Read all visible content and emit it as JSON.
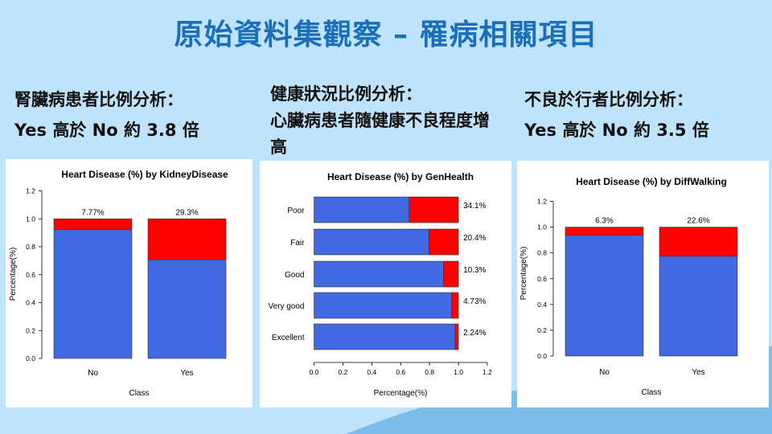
{
  "slide": {
    "title": "原始資料集觀察 – 罹病相關項目",
    "captions": [
      {
        "line1": "腎臟病患者比例分析：",
        "line2": "Yes 高於 No 約 3.8 倍"
      },
      {
        "line1": "健康狀況比例分析：",
        "line2": "心臟病患者隨健康不良程度增高"
      },
      {
        "line1": "不良於行者比例分析：",
        "line2": "Yes 高於 No 約 3.5 倍"
      }
    ]
  },
  "colors": {
    "no_disease": "#4169e1",
    "disease": "#ff0000",
    "accent": "#1a6fb8"
  },
  "chart_data": [
    {
      "type": "bar",
      "orientation": "vertical",
      "stacked": true,
      "title": "Heart Disease (%) by KidneyDisease",
      "xlabel": "Class",
      "ylabel": "Percentage(%)",
      "categories": [
        "No",
        "Yes"
      ],
      "disease_share": [
        0.0777,
        0.293
      ],
      "labels": [
        "7.77%",
        "29.3%"
      ],
      "ylim": [
        0,
        1.2
      ],
      "ticks": [
        "0.0",
        "0.2",
        "0.4",
        "0.6",
        "0.8",
        "1.0",
        "1.2"
      ]
    },
    {
      "type": "bar",
      "orientation": "horizontal",
      "stacked": true,
      "title": "Heart Disease (%) by GenHealth",
      "xlabel": "Percentage(%)",
      "ylabel": "",
      "categories": [
        "Poor",
        "Fair",
        "Good",
        "Very good",
        "Excellent"
      ],
      "disease_share": [
        0.341,
        0.204,
        0.103,
        0.0473,
        0.0224
      ],
      "labels": [
        "34.1%",
        "20.4%",
        "10.3%",
        "4.73%",
        "2.24%"
      ],
      "xlim": [
        0,
        1.2
      ],
      "ticks": [
        "0.0",
        "0.2",
        "0.4",
        "0.6",
        "0.8",
        "1.0",
        "1.2"
      ]
    },
    {
      "type": "bar",
      "orientation": "vertical",
      "stacked": true,
      "title": "Heart Disease (%) by DiffWalking",
      "xlabel": "Class",
      "ylabel": "Percentage(%)",
      "categories": [
        "No",
        "Yes"
      ],
      "disease_share": [
        0.063,
        0.226
      ],
      "labels": [
        "6.3%",
        "22.6%"
      ],
      "ylim": [
        0,
        1.2
      ],
      "ticks": [
        "0.0",
        "0.2",
        "0.4",
        "0.6",
        "0.8",
        "1.0",
        "1.2"
      ]
    }
  ]
}
